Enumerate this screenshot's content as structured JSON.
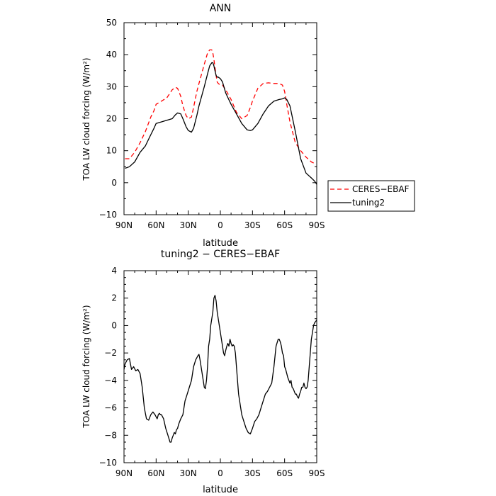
{
  "chart_data": [
    {
      "type": "line",
      "title": "ANN",
      "xlabel": "latitude",
      "ylabel": "TOA LW cloud forcing (W/m²)",
      "xlim": [
        90,
        -90
      ],
      "ylim": [
        -10,
        50
      ],
      "x_ticks": [
        90,
        60,
        30,
        0,
        -30,
        -60,
        -90
      ],
      "x_tick_labels": [
        "90N",
        "60N",
        "30N",
        "0",
        "30S",
        "60S",
        "90S"
      ],
      "y_ticks": [
        -10,
        0,
        10,
        20,
        30,
        40,
        50
      ],
      "y_tick_labels": [
        "−10",
        "0",
        "10",
        "20",
        "30",
        "40",
        "50"
      ],
      "legend": "right",
      "series": [
        {
          "name": "CERES−EBAF",
          "color": "#ff0000",
          "dash": "dashed",
          "x": [
            89,
            85,
            80,
            75,
            70,
            65,
            62,
            60,
            55,
            50,
            45,
            42,
            40,
            37,
            35,
            32,
            30,
            27,
            25,
            22,
            20,
            15,
            12,
            10,
            8,
            7,
            6,
            5,
            4,
            3,
            2,
            0,
            -2,
            -5,
            -10,
            -15,
            -20,
            -25,
            -28,
            -30,
            -35,
            -40,
            -45,
            -50,
            -55,
            -58,
            -60,
            -62,
            -65,
            -70,
            -75,
            -80,
            -85,
            -88
          ],
          "values": [
            7.5,
            7.5,
            9.5,
            12.5,
            16,
            20.5,
            22.5,
            24.5,
            25.5,
            26.5,
            29,
            29.8,
            29.5,
            27,
            24,
            21,
            20,
            20.5,
            23.5,
            28.5,
            31,
            37,
            40.5,
            41.5,
            41.5,
            40.5,
            38.5,
            36,
            33.5,
            31.5,
            31,
            30.5,
            30.5,
            29,
            26,
            22,
            20,
            21,
            23.5,
            25.5,
            29.5,
            31,
            31.2,
            31,
            31,
            30.5,
            28.5,
            24.5,
            19,
            12.5,
            10,
            8,
            6.5,
            6
          ]
        },
        {
          "name": "tuning2",
          "color": "#000000",
          "dash": "solid",
          "x": [
            89,
            85,
            80,
            75,
            70,
            65,
            62,
            60,
            55,
            50,
            45,
            42,
            40,
            37,
            35,
            32,
            30,
            27,
            25,
            22,
            20,
            15,
            12,
            10,
            8,
            7,
            6,
            5,
            4,
            3,
            2,
            0,
            -2,
            -5,
            -10,
            -15,
            -20,
            -25,
            -28,
            -30,
            -35,
            -40,
            -45,
            -50,
            -55,
            -58,
            -60,
            -62,
            -65,
            -70,
            -75,
            -80,
            -85,
            -88,
            -90
          ],
          "values": [
            4.5,
            5,
            6.5,
            9.5,
            11.5,
            15,
            17,
            18.5,
            19,
            19.5,
            20,
            21.2,
            21.8,
            21.5,
            20,
            17.5,
            16.3,
            15.8,
            17,
            21,
            24,
            30,
            34,
            36.5,
            37.5,
            37.5,
            36.5,
            35,
            33.5,
            33,
            33,
            32.5,
            31.5,
            28,
            24.5,
            21.5,
            18.5,
            16.5,
            16.3,
            16.5,
            18.5,
            21.5,
            24,
            25.5,
            26,
            26.2,
            26.5,
            26,
            24,
            16,
            7.5,
            3,
            1.5,
            0.5,
            -0.5
          ]
        }
      ]
    },
    {
      "type": "line",
      "title": "tuning2 − CERES−EBAF",
      "xlabel": "latitude",
      "ylabel": "TOA LW cloud forcing (W/m²)",
      "xlim": [
        90,
        -90
      ],
      "ylim": [
        -10,
        4
      ],
      "x_ticks": [
        90,
        60,
        30,
        0,
        -30,
        -60,
        -90
      ],
      "x_tick_labels": [
        "90N",
        "60N",
        "30N",
        "0",
        "30S",
        "60S",
        "90S"
      ],
      "y_ticks": [
        -10,
        -8,
        -6,
        -4,
        -2,
        0,
        2,
        4
      ],
      "y_tick_labels": [
        "−10",
        "−8",
        "−6",
        "−4",
        "−2",
        "0",
        "2",
        "4"
      ],
      "series": [
        {
          "color": "#000000",
          "dash": "solid",
          "x": [
            90,
            89,
            87,
            85,
            83,
            81,
            79,
            77,
            75,
            73,
            71,
            69,
            67,
            65,
            63,
            61,
            59,
            58,
            57,
            56,
            55,
            53,
            51,
            49,
            47,
            46,
            45,
            44,
            43,
            42,
            41,
            40,
            39,
            38,
            37,
            35,
            33,
            31,
            29,
            27,
            25,
            23,
            21,
            20,
            19,
            18,
            17,
            16,
            15,
            14,
            13,
            12,
            11,
            10,
            9,
            8,
            7,
            6,
            5,
            4,
            3,
            2,
            1,
            0,
            -1,
            -2,
            -3,
            -4,
            -5,
            -6,
            -7,
            -8,
            -9,
            -10,
            -11,
            -12,
            -13,
            -14,
            -15,
            -16,
            -17,
            -18,
            -19,
            -20,
            -22,
            -24,
            -26,
            -28,
            -30,
            -32,
            -34,
            -36,
            -38,
            -40,
            -42,
            -44,
            -46,
            -48,
            -50,
            -52,
            -54,
            -55,
            -56,
            -57,
            -58,
            -59,
            -60,
            -61,
            -62,
            -63,
            -64,
            -65,
            -66,
            -67,
            -68,
            -69,
            -70,
            -71,
            -72,
            -73,
            -74,
            -75,
            -76,
            -77,
            -78,
            -79,
            -80,
            -81,
            -82,
            -83,
            -84,
            -85,
            -86,
            -87,
            -88,
            -89,
            -90
          ],
          "values": [
            -3.2,
            -2.8,
            -2.5,
            -2.4,
            -3.2,
            -3,
            -3.3,
            -3.2,
            -3.5,
            -4.5,
            -6,
            -6.8,
            -6.9,
            -6.5,
            -6.3,
            -6.5,
            -6.8,
            -6.5,
            -6.4,
            -6.5,
            -6.5,
            -6.8,
            -7.5,
            -8,
            -8.5,
            -8.5,
            -8.2,
            -8,
            -7.8,
            -7.9,
            -7.6,
            -7.5,
            -7.2,
            -7,
            -6.8,
            -6.5,
            -5.5,
            -5,
            -4.5,
            -4,
            -3,
            -2.5,
            -2.2,
            -2.1,
            -2.5,
            -3,
            -3.5,
            -4,
            -4.5,
            -4.6,
            -4,
            -3,
            -1.5,
            -1,
            0,
            0.5,
            1,
            2,
            2.2,
            1.8,
            1,
            0.5,
            0,
            -0.5,
            -1,
            -1.5,
            -2,
            -2.2,
            -1.8,
            -1.5,
            -1.3,
            -1.5,
            -1,
            -1.3,
            -1.5,
            -1.4,
            -1.5,
            -2,
            -3,
            -4,
            -5,
            -5.5,
            -6,
            -6.5,
            -7,
            -7.5,
            -7.8,
            -7.9,
            -7.5,
            -7,
            -6.8,
            -6.5,
            -6,
            -5.5,
            -5,
            -4.8,
            -4.5,
            -4.2,
            -3,
            -1.5,
            -1,
            -1,
            -1.2,
            -1.5,
            -2,
            -2.2,
            -3,
            -3.2,
            -3.5,
            -3.8,
            -4,
            -4.2,
            -4,
            -4.5,
            -4.6,
            -4.8,
            -5,
            -5,
            -5.2,
            -5.3,
            -5,
            -4.8,
            -4.5,
            -4.5,
            -4.2,
            -4.5,
            -4.6,
            -4.5,
            -4,
            -3,
            -2,
            -1,
            -0.5,
            0,
            0.2,
            0.3,
            0.4
          ]
        }
      ]
    }
  ]
}
